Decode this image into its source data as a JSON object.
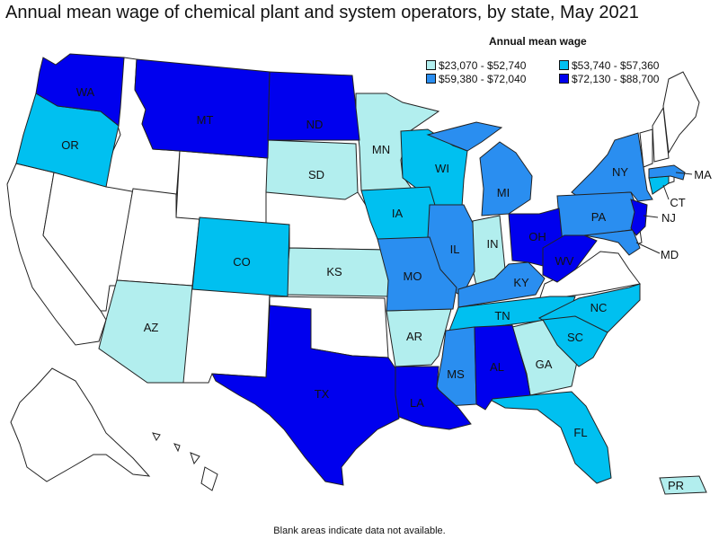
{
  "title": "Annual mean wage of chemical plant and system operators, by state, May 2021",
  "legend": {
    "title": "Annual mean wage",
    "items": [
      {
        "label": "$23,070 - $52,740",
        "color": "#b2eeee"
      },
      {
        "label": "$53,740 - $57,360",
        "color": "#00c0f0"
      },
      {
        "label": "$59,380 - $72,040",
        "color": "#2a8ef0"
      },
      {
        "label": "$72,130 - $88,700",
        "color": "#0000ee"
      }
    ]
  },
  "colors": {
    "no_data": "#ffffff",
    "tier1": "#b2eeee",
    "tier2": "#00c0f0",
    "tier3": "#2a8ef0",
    "tier4": "#0000ee"
  },
  "states": {
    "WA": "WA",
    "OR": "OR",
    "MT": "MT",
    "ND": "ND",
    "MN": "MN",
    "SD": "SD",
    "WI": "WI",
    "MI": "MI",
    "NY": "NY",
    "MA": "MA",
    "CT": "CT",
    "NJ": "NJ",
    "PA": "PA",
    "MD": "MD",
    "OH": "OH",
    "WV": "WV",
    "IN": "IN",
    "IL": "IL",
    "IA": "IA",
    "CO": "CO",
    "KS": "KS",
    "MO": "MO",
    "KY": "KY",
    "TN": "TN",
    "NC": "NC",
    "SC": "SC",
    "GA": "GA",
    "AL": "AL",
    "MS": "MS",
    "AR": "AR",
    "LA": "LA",
    "TX": "TX",
    "AZ": "AZ",
    "FL": "FL",
    "PR": "PR"
  },
  "footnote": "Blank areas indicate data not available."
}
